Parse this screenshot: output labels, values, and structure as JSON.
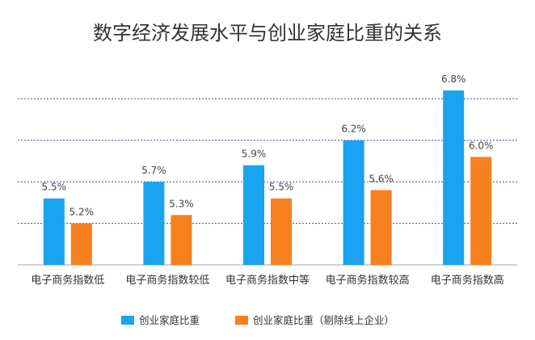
{
  "chart_data": {
    "type": "bar",
    "title": "数字经济发展水平与创业家庭比重的关系",
    "categories": [
      "电子商务指数低",
      "电子商务指数较低",
      "电子商务指数中等",
      "电子商务指数较高",
      "电子商务指数高"
    ],
    "series": [
      {
        "name": "创业家庭比重",
        "color": "#1aa3ee",
        "values": [
          5.5,
          5.7,
          5.9,
          6.2,
          6.8
        ],
        "labels": [
          "5.5%",
          "5.7%",
          "5.9%",
          "6.2%",
          "6.8%"
        ]
      },
      {
        "name": "创业家庭比重（剔除线上企业）",
        "color": "#f77f1e",
        "values": [
          5.2,
          5.3,
          5.5,
          5.6,
          6.0
        ],
        "labels": [
          "5.2%",
          "5.3%",
          "5.5%",
          "5.6%",
          "6.0%"
        ]
      }
    ],
    "ylim": [
      4.7,
      6.8
    ],
    "gridlines": [
      5.2,
      5.7,
      6.2,
      6.7
    ],
    "gridline_color": "#3b4ea8",
    "grid": true,
    "legend_position": "bottom"
  }
}
